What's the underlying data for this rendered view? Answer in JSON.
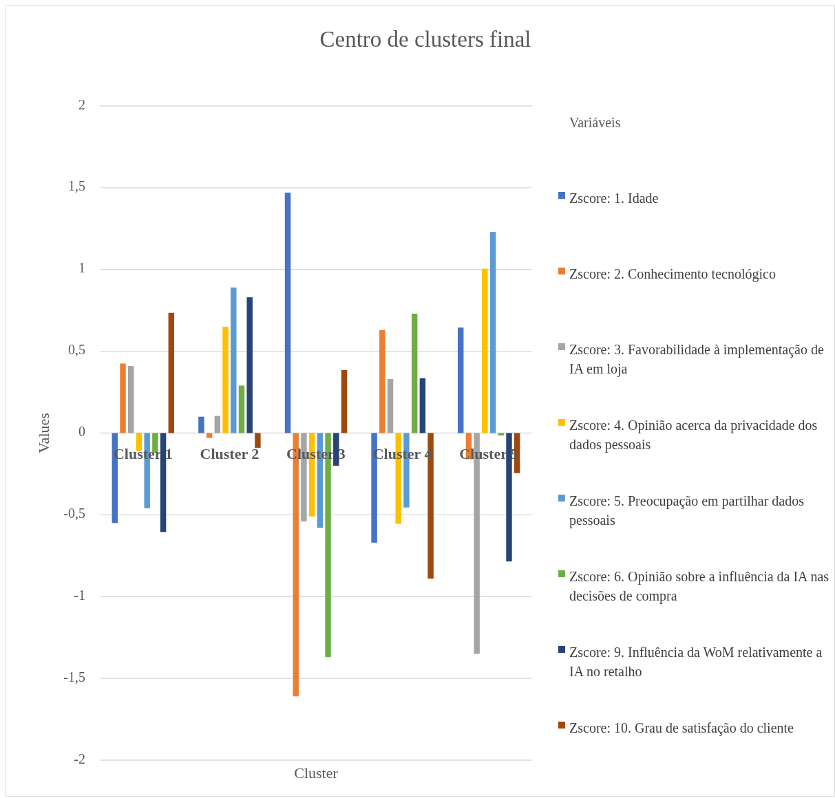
{
  "chart_data": {
    "type": "bar",
    "title": "Centro de clusters final",
    "xlabel": "Cluster",
    "ylabel": "Values",
    "legend_title": "Variáveis",
    "categories": [
      "Cluster 1",
      "Cluster 2",
      "Cluster 3",
      "Cluster 4",
      "Cluster 5"
    ],
    "series": [
      {
        "name": "Zscore:  1. Idade",
        "color": "#4472c4",
        "values": [
          -0.55,
          0.1,
          1.47,
          -0.67,
          0.645
        ]
      },
      {
        "name": "Zscore:  2. Conhecimento tecnológico",
        "color": "#ed7d31",
        "values": [
          0.425,
          -0.03,
          -1.61,
          0.63,
          -0.16
        ]
      },
      {
        "name": "Zscore:  3. Favorabilidade à implementação de IA em loja",
        "color": "#a5a5a5",
        "values": [
          0.41,
          0.105,
          -0.54,
          0.33,
          -1.35
        ]
      },
      {
        "name": "Zscore:  4. Opinião acerca da privacidade dos dados pessoais",
        "color": "#ffc000",
        "values": [
          -0.11,
          0.65,
          -0.51,
          -0.555,
          1.005
        ]
      },
      {
        "name": "Zscore:  5. Preocupação em partilhar dados pessoais",
        "color": "#5b9bd5",
        "values": [
          -0.46,
          0.89,
          -0.58,
          -0.455,
          1.23
        ]
      },
      {
        "name": "Zscore:  6. Opinião sobre a influência da IA nas decisões de compra",
        "color": "#70ad47",
        "values": [
          -0.12,
          0.29,
          -1.37,
          0.73,
          -0.015
        ]
      },
      {
        "name": "Zscore:  9. Influência da WoM relativamente a IA no retalho",
        "color": "#264478",
        "values": [
          -0.605,
          0.83,
          -0.2,
          0.335,
          -0.785
        ]
      },
      {
        "name": "Zscore:  10. Grau de satisfação do cliente",
        "color": "#9e480e",
        "values": [
          0.735,
          -0.09,
          0.385,
          -0.89,
          -0.245
        ]
      }
    ],
    "ylim": [
      -2,
      2
    ],
    "yticks": [
      {
        "value": -2,
        "label": "-2"
      },
      {
        "value": -1.5,
        "label": "-1,5"
      },
      {
        "value": -1,
        "label": "-1"
      },
      {
        "value": -0.5,
        "label": "-0,5"
      },
      {
        "value": 0,
        "label": "0"
      },
      {
        "value": 0.5,
        "label": "0,5"
      },
      {
        "value": 1,
        "label": "1"
      },
      {
        "value": 1.5,
        "label": "1,5"
      },
      {
        "value": 2,
        "label": "2"
      }
    ],
    "grid": "y",
    "legend": "right"
  }
}
